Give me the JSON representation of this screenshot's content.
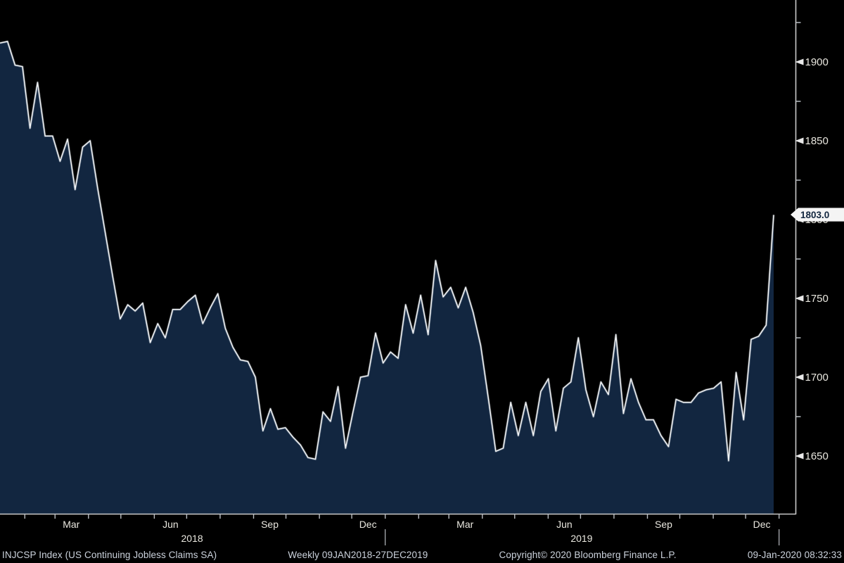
{
  "chart_data": {
    "type": "area",
    "title": "INJCSP Index (US Continuing Jobless Claims SA)",
    "frequency": "Weekly",
    "date_range": "09JAN2018-27DEC2019",
    "x_start": "09JAN2018",
    "x_end": "27DEC2019",
    "points": 104,
    "xlabel": "",
    "ylabel": "",
    "grid": false,
    "legend": "none",
    "ylim": [
      1613,
      1939
    ],
    "last_value": 1803.0,
    "last_value_label": "1803.0",
    "values": [
      1912,
      1913,
      1898,
      1897,
      1858,
      1887,
      1853,
      1853,
      1837,
      1851,
      1819,
      1846,
      1850,
      1820,
      1792,
      1764,
      1737,
      1746,
      1742,
      1747,
      1722,
      1734,
      1725,
      1743,
      1743,
      1748,
      1752,
      1734,
      1744,
      1753,
      1731,
      1719,
      1711,
      1710,
      1700,
      1666,
      1680,
      1667,
      1668,
      1662,
      1657,
      1649,
      1648,
      1678,
      1672,
      1694,
      1655,
      1678,
      1700,
      1701,
      1728,
      1709,
      1716,
      1712,
      1746,
      1728,
      1752,
      1727,
      1774,
      1751,
      1757,
      1744,
      1757,
      1741,
      1720,
      1687,
      1653,
      1655,
      1684,
      1663,
      1684,
      1663,
      1691,
      1699,
      1666,
      1693,
      1697,
      1725,
      1692,
      1675,
      1697,
      1689,
      1727,
      1677,
      1699,
      1684,
      1673,
      1673,
      1663,
      1656,
      1686,
      1684,
      1684,
      1690,
      1692,
      1693,
      1697,
      1647,
      1703,
      1673,
      1724,
      1726,
      1733,
      1803
    ],
    "y_axis": {
      "side": "right",
      "major_ticks": [
        1900,
        1850,
        1800,
        1750,
        1700,
        1650
      ],
      "minor_ticks": [
        1925,
        1875,
        1825,
        1775,
        1725,
        1675
      ]
    },
    "x_axis": {
      "domain_days": 717,
      "month_tick_days": [
        23,
        51,
        82,
        112,
        143,
        173,
        204,
        235,
        265,
        296,
        326,
        357,
        388,
        416,
        447,
        477,
        508,
        538,
        569,
        600,
        630,
        661,
        691,
        722
      ],
      "quarter_labels": [
        {
          "label": "Mar",
          "day": 66
        },
        {
          "label": "Jun",
          "day": 158
        },
        {
          "label": "Sep",
          "day": 250
        },
        {
          "label": "Dec",
          "day": 341
        },
        {
          "label": "Mar",
          "day": 431
        },
        {
          "label": "Jun",
          "day": 523
        },
        {
          "label": "Sep",
          "day": 615
        },
        {
          "label": "Dec",
          "day": 706
        }
      ],
      "year_labels": [
        {
          "label": "2018",
          "day": 178
        },
        {
          "label": "2019",
          "day": 539
        }
      ],
      "year_separator_days": [
        357,
        722
      ]
    },
    "colors": {
      "background": "#000000",
      "area_fill": "#122640",
      "line": "#f2f4f6",
      "line_glow": "rgba(220,228,240,0.30)",
      "axis": "#c9c9c9",
      "tick": "#b9bdc2",
      "tick_label": "#e9e7df",
      "callout_bg": "#f4f4f4",
      "callout_text": "#12263f",
      "footer_text": "#ccd3dd"
    }
  },
  "footer": {
    "security": "INJCSP Index (US Continuing Jobless Claims SA)",
    "range": "Weekly 09JAN2018-27DEC2019",
    "copyright": "Copyright© 2020 Bloomberg Finance L.P.",
    "timestamp": "09-Jan-2020 08:32:33"
  }
}
